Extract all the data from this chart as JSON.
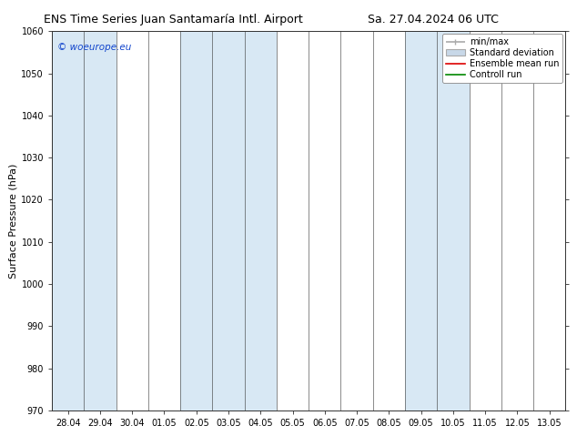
{
  "title_left": "ENS Time Series Juan Santamaría Intl. Airport",
  "title_right": "Sa. 27.04.2024 06 UTC",
  "ylabel": "Surface Pressure (hPa)",
  "ylim": [
    970,
    1060
  ],
  "yticks": [
    970,
    980,
    990,
    1000,
    1010,
    1020,
    1030,
    1040,
    1050,
    1060
  ],
  "x_labels": [
    "28.04",
    "29.04",
    "30.04",
    "01.05",
    "02.05",
    "03.05",
    "04.05",
    "05.05",
    "06.05",
    "07.05",
    "08.05",
    "09.05",
    "10.05",
    "11.05",
    "12.05",
    "13.05"
  ],
  "background_color": "#ffffff",
  "band_color": "#d8e8f4",
  "watermark": "© woeurope.eu",
  "watermark_color": "#1144cc",
  "legend_labels": [
    "min/max",
    "Standard deviation",
    "Ensemble mean run",
    "Controll run"
  ],
  "legend_line_color": "#aaaaaa",
  "legend_std_color": "#c8d8e8",
  "legend_ens_color": "#dd0000",
  "legend_ctrl_color": "#008800",
  "title_fontsize": 9,
  "tick_fontsize": 7,
  "ylabel_fontsize": 8,
  "legend_fontsize": 7,
  "shaded_indices": [
    0,
    1,
    4,
    5,
    6,
    11,
    12
  ]
}
